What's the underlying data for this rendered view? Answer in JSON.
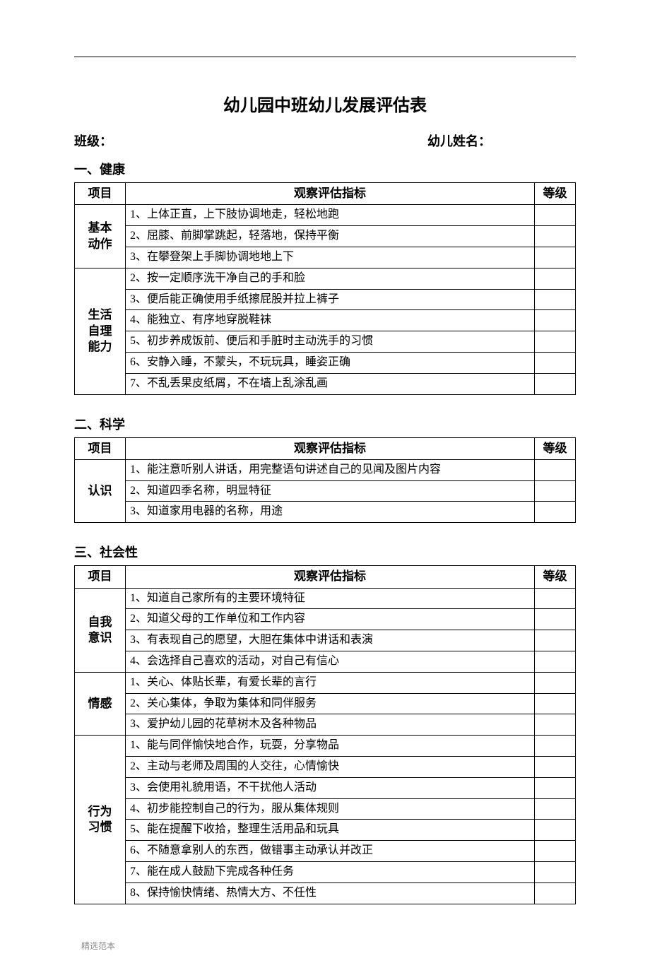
{
  "title": "幼儿园中班幼儿发展评估表",
  "class_label": "班级：",
  "name_label": "幼儿姓名：",
  "columns": {
    "category": "项目",
    "indicator": "观察评估指标",
    "grade": "等级"
  },
  "sections": [
    {
      "heading": "一、健康",
      "groups": [
        {
          "category": "基本动作",
          "items": [
            "1、上体正直，上下肢协调地走，轻松地跑",
            "2、屈膝、前脚掌跳起，轻落地，保持平衡",
            "3、在攀登架上手脚协调地地上下"
          ]
        },
        {
          "category": "生活自理能力",
          "items": [
            "2、按一定顺序洗干净自己的手和脸",
            "3、便后能正确使用手纸擦屁股并拉上裤子",
            "4、能独立、有序地穿脱鞋袜",
            "5、初步养成饭前、便后和手脏时主动洗手的习惯",
            "6、安静入睡，不蒙头，不玩玩具，睡姿正确",
            "7、不乱丢果皮纸屑，不在墙上乱涂乱画"
          ]
        }
      ]
    },
    {
      "heading": "二、科学",
      "groups": [
        {
          "category": "认识",
          "items": [
            "1、能注意听别人讲话，用完整语句讲述自己的见闻及图片内容",
            "2、知道四季名称，明显特征",
            "3、知道家用电器的名称，用途"
          ]
        }
      ]
    },
    {
      "heading": "三、社会性",
      "groups": [
        {
          "category": "自我意识",
          "items": [
            "1、知道自己家所有的主要环境特征",
            "2、知道父母的工作单位和工作内容",
            "3、有表现自己的愿望，大胆在集体中讲话和表演",
            "4、会选择自己喜欢的活动，对自己有信心"
          ]
        },
        {
          "category": "情感",
          "items": [
            "1、关心、体贴长辈，有爱长辈的言行",
            "2、关心集体，争取为集体和同伴服务",
            "3、爱护幼儿园的花草树木及各种物品"
          ]
        },
        {
          "category": "行为习惯",
          "items": [
            "1、能与同伴愉快地合作，玩耍，分享物品",
            "2、主动与老师及周围的人交往，心情愉快",
            "3、会使用礼貌用语，不干扰他人活动",
            "4、初步能控制自己的行为，服从集体规则",
            "5、能在提醒下收拾，整理生活用品和玩具",
            "6、不随意拿别人的东西，做错事主动承认并改正",
            "7、能在成人鼓励下完成各种任务",
            "8、保持愉快情绪、热情大方、不任性"
          ]
        }
      ]
    }
  ],
  "footer": "精选范本"
}
